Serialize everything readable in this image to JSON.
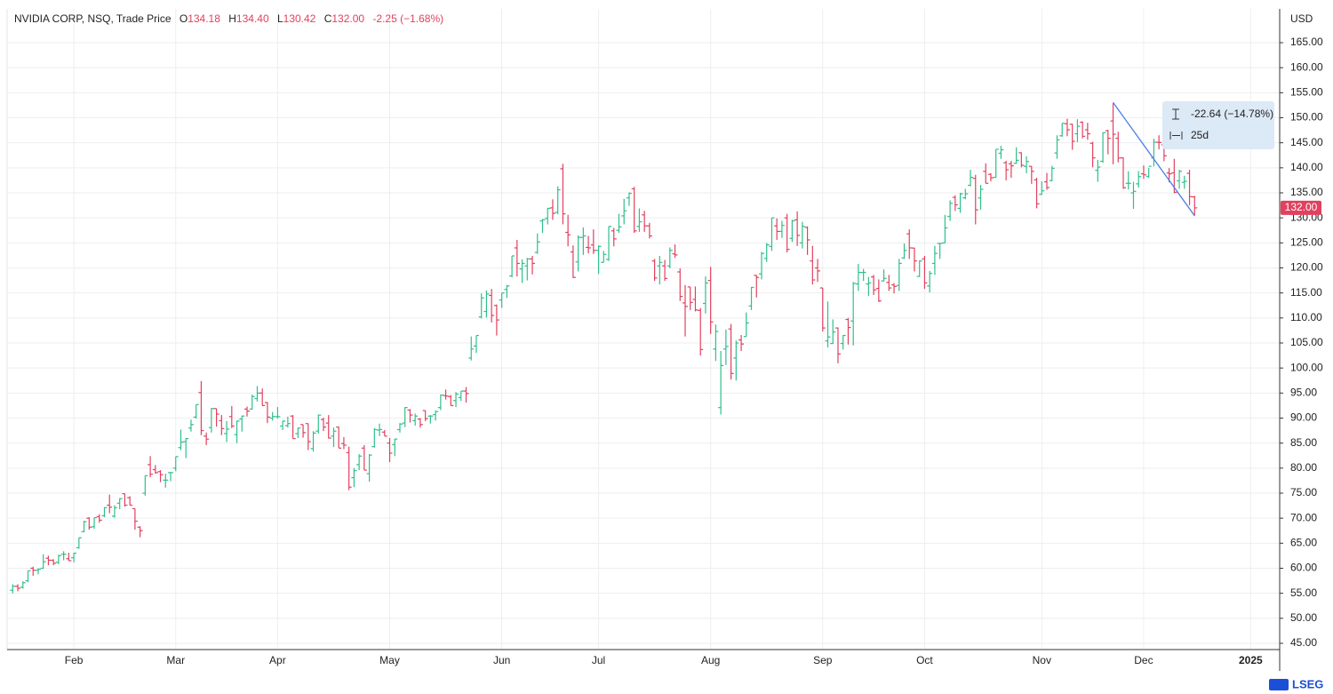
{
  "chart_data": {
    "type": "ohlc",
    "title": "NVIDIA CORP, NSQ, Trade Price",
    "quote": {
      "open": {
        "key": "O",
        "value": 134.18,
        "label": "134.18"
      },
      "high": {
        "key": "H",
        "value": 134.4,
        "label": "134.40"
      },
      "low": {
        "key": "L",
        "value": 130.42,
        "label": "130.42"
      },
      "close": {
        "key": "C",
        "value": 132,
        "label": "132.00"
      },
      "change": {
        "value": -2.25,
        "label": "-2.25 (−1.68%)"
      }
    },
    "y_label": "USD",
    "brand": "LSEG",
    "up_color": "#2fbf8c",
    "down_color": "#e2405e",
    "grid": true,
    "xlim": [
      -1.1,
      248.7
    ],
    "xticks": [
      {
        "value": 12,
        "label": "Feb"
      },
      {
        "value": 32,
        "label": "Mar"
      },
      {
        "value": 52,
        "label": "Apr"
      },
      {
        "value": 74,
        "label": "May"
      },
      {
        "value": 96,
        "label": "Jun"
      },
      {
        "value": 115,
        "label": "Jul"
      },
      {
        "value": 137,
        "label": "Aug"
      },
      {
        "value": 159,
        "label": "Sep"
      },
      {
        "value": 179,
        "label": "Oct"
      },
      {
        "value": 202,
        "label": "Nov"
      },
      {
        "value": 222,
        "label": "Dec"
      },
      {
        "value": 243,
        "label": "2025"
      }
    ],
    "ylim": [
      43.93,
      171.75
    ],
    "yticks": [
      {
        "value": 45,
        "label": "45.00"
      },
      {
        "value": 50,
        "label": "50.00"
      },
      {
        "value": 55,
        "label": "55.00"
      },
      {
        "value": 60,
        "label": "60.00"
      },
      {
        "value": 65,
        "label": "65.00"
      },
      {
        "value": 70,
        "label": "70.00"
      },
      {
        "value": 75,
        "label": "75.00"
      },
      {
        "value": 80,
        "label": "80.00"
      },
      {
        "value": 85,
        "label": "85.00"
      },
      {
        "value": 90,
        "label": "90.00"
      },
      {
        "value": 95,
        "label": "95.00"
      },
      {
        "value": 100,
        "label": "100.00"
      },
      {
        "value": 105,
        "label": "105.00"
      },
      {
        "value": 110,
        "label": "110.00"
      },
      {
        "value": 115,
        "label": "115.00"
      },
      {
        "value": 120,
        "label": "120.00"
      },
      {
        "value": 125,
        "label": "125.00"
      },
      {
        "value": 130,
        "label": "130.00"
      },
      {
        "value": 135,
        "label": "135.00"
      },
      {
        "value": 140,
        "label": "140.00"
      },
      {
        "value": 145,
        "label": "145.00"
      },
      {
        "value": 150,
        "label": "150.00"
      },
      {
        "value": 155,
        "label": "155.00"
      },
      {
        "value": 160,
        "label": "160.00"
      },
      {
        "value": 165,
        "label": "165.00"
      }
    ],
    "measure": {
      "x": [
        216,
        232
      ],
      "y": [
        153.06,
        130.42
      ],
      "change_label": "-22.64 (−14.78%)",
      "duration_label": "25d",
      "color": "#4d7fe6"
    },
    "open": [
      55.6,
      56.4,
      56.2,
      57.5,
      60.0,
      59.6,
      60.0,
      62.0,
      61.6,
      61.2,
      62.8,
      61.9,
      62.1,
      64.1,
      67.3,
      70.0,
      68.3,
      70.3,
      70.5,
      72.6,
      70.4,
      73.0,
      74.9,
      74.1,
      71.9,
      68.2,
      75.0,
      80.7,
      79.7,
      79.3,
      77.6,
      79.1,
      80.0,
      84.1,
      85.3,
      88.0,
      90.2,
      95.1,
      86.4,
      88.1,
      91.9,
      89.5,
      86.9,
      90.3,
      86.7,
      89.8,
      91.8,
      91.8,
      93.9,
      95.0,
      93.1,
      90.0,
      90.3,
      88.4,
      88.5,
      90.4,
      86.9,
      88.7,
      88.9,
      83.9,
      87.4,
      89.7,
      89.0,
      86.4,
      88.2,
      84.9,
      83.1,
      78.1,
      80.7,
      84.0,
      78.9,
      84.3,
      87.6,
      87.2,
      85.0,
      84.7,
      87.7,
      89.0,
      91.6,
      89.5,
      89.8,
      91.5,
      90.4,
      90.7,
      92.1,
      94.5,
      94.3,
      93.5,
      94.1,
      95.4,
      102.0,
      104.4,
      110.2,
      111.3,
      114.5,
      112.5,
      113.6,
      115.7,
      118.4,
      124.0,
      119.8,
      120.4,
      121.8,
      123.1,
      129.4,
      129.9,
      132.0,
      131.1,
      139.8,
      127.1,
      123.2,
      121.2,
      126.1,
      124.1,
      124.6,
      123.5,
      121.1,
      121.7,
      127.4,
      127.5,
      130.4,
      134.0,
      135.8,
      128.3,
      130.6,
      128.4,
      121.4,
      120.4,
      120.4,
      120.4,
      122.8,
      119.2,
      113.0,
      116.2,
      113.7,
      111.5,
      112.9,
      117.5,
      103.8,
      92.1,
      103.8,
      107.8,
      102.0,
      105.6,
      106.3,
      112.4,
      118.5,
      118.8,
      121.9,
      124.3,
      128.4,
      127.3,
      130.0,
      125.9,
      129.6,
      125.0,
      128.1,
      121.4,
      120.0,
      116.0,
      105.4,
      104.9,
      108.0,
      104.9,
      109.7,
      109.4,
      116.8,
      119.1,
      116.8,
      118.2,
      115.9,
      117.4,
      117.1,
      116.6,
      116.5,
      122.0,
      126.8,
      123.97,
      118.3,
      121.8,
      116.4,
      120.9,
      124.9,
      124.99,
      130.3,
      134.1,
      131.9,
      134.0,
      136.5,
      137.9,
      133.98,
      139.3,
      138.7,
      138.1,
      142.9,
      141.0,
      140.8,
      140.9,
      143.0,
      140.3,
      140.3,
      137.6,
      134.7,
      137.2,
      137.45,
      142.96,
      146.4,
      148.8,
      148.7,
      146.8,
      149.1,
      147.6,
      144.9,
      139.5,
      141.3,
      147.4,
      149.35,
      145.9,
      141.99,
      136.9,
      135.0,
      136.8,
      138.8,
      138.3,
      142.0,
      145.1,
      144.6,
      138.97,
      139.0,
      137.4,
      137.1,
      138.9,
      134.18
    ],
    "high": [
      56.8,
      56.8,
      57.4,
      59.5,
      60.3,
      60.0,
      62.8,
      62.5,
      61.8,
      62.7,
      63.4,
      63.1,
      63.1,
      66.1,
      69.5,
      70.2,
      70.1,
      70.8,
      72.2,
      74.7,
      72.6,
      74.0,
      74.9,
      74.4,
      71.9,
      68.4,
      78.5,
      82.4,
      80.6,
      79.6,
      78.9,
      79.2,
      82.3,
      87.7,
      86.0,
      89.7,
      92.7,
      97.4,
      87.1,
      92.0,
      91.9,
      90.6,
      89.4,
      92.4,
      89.5,
      90.5,
      92.3,
      94.7,
      96.4,
      95.9,
      93.2,
      91.2,
      92.2,
      89.5,
      90.3,
      90.6,
      88.1,
      88.7,
      88.9,
      87.4,
      90.7,
      90.1,
      90.6,
      88.1,
      88.3,
      86.2,
      84.3,
      80.0,
      82.8,
      84.6,
      82.8,
      88.0,
      88.9,
      87.6,
      86.0,
      85.9,
      89.0,
      92.2,
      91.8,
      90.9,
      90.0,
      91.5,
      90.6,
      91.5,
      94.7,
      95.7,
      94.6,
      95.2,
      95.4,
      96.2,
      106.3,
      106.5,
      114.9,
      115.5,
      115.8,
      112.7,
      115.0,
      116.6,
      122.4,
      125.6,
      121.7,
      122.0,
      122.4,
      126.9,
      129.8,
      132.0,
      133.7,
      136.3,
      140.8,
      130.6,
      124.5,
      126.5,
      128.1,
      126.4,
      127.7,
      124.5,
      123.4,
      128.3,
      128.0,
      130.8,
      133.8,
      135.1,
      136.2,
      131.9,
      131.4,
      129.0,
      121.8,
      122.4,
      121.6,
      124.1,
      124.7,
      119.9,
      116.6,
      116.2,
      116.3,
      111.99,
      118.3,
      120.2,
      108.7,
      103.4,
      107.7,
      108.8,
      105.5,
      106.6,
      111.1,
      116.2,
      118.6,
      123.2,
      125.0,
      130.0,
      129.9,
      129.4,
      130.8,
      129.6,
      131.3,
      129.2,
      128.3,
      124.4,
      121.8,
      116.0,
      113.3,
      109.7,
      108.1,
      106.6,
      110.0,
      117.2,
      120.8,
      119.8,
      118.2,
      118.6,
      117.7,
      119.7,
      118.6,
      116.99,
      121.8,
      124.9,
      127.7,
      124.0,
      121.5,
      122.4,
      119.4,
      124.4,
      125.0,
      130.6,
      133.5,
      134.5,
      135.0,
      135.8,
      139.6,
      138.6,
      136.6,
      140.9,
      138.9,
      143.7,
      144.4,
      141.4,
      141.4,
      144.1,
      143.1,
      142.3,
      140.3,
      138.0,
      137.3,
      138.96,
      140.4,
      146.5,
      148.9,
      149.8,
      148.8,
      149.7,
      149.3,
      149.0,
      145.2,
      141.6,
      147.1,
      147.6,
      152.9,
      147.2,
      142.05,
      139.3,
      137.2,
      139.35,
      140.45,
      140.0,
      145.8,
      146.5,
      145.7,
      139.95,
      141.8,
      139.6,
      138.4,
      139.6,
      134.4
    ],
    "low": [
      55.0,
      55.4,
      55.9,
      57.2,
      58.5,
      58.8,
      59.9,
      60.6,
      60.6,
      60.8,
      61.6,
      61.5,
      61.2,
      63.9,
      67.2,
      67.7,
      67.9,
      69.1,
      70.2,
      71.0,
      70.1,
      71.8,
      72.3,
      72.6,
      67.7,
      66.2,
      74.5,
      78.2,
      78.9,
      77.2,
      76.1,
      77.4,
      79.4,
      83.6,
      82.0,
      87.3,
      89.9,
      86.6,
      84.6,
      87.1,
      88.3,
      86.6,
      85.2,
      88.0,
      85.0,
      87.3,
      90.3,
      91.7,
      93.3,
      92.5,
      89.0,
      89.5,
      89.9,
      87.6,
      88.1,
      85.9,
      86.0,
      86.1,
      83.6,
      83.3,
      86.9,
      87.4,
      85.9,
      84.2,
      84.0,
      83.8,
      75.6,
      76.2,
      79.6,
      79.6,
      77.3,
      84.1,
      86.4,
      86.4,
      81.2,
      82.4,
      87.1,
      88.2,
      89.1,
      88.5,
      88.1,
      89.4,
      88.9,
      89.5,
      91.6,
      93.7,
      92.5,
      92.2,
      93.4,
      93.1,
      101.5,
      103.0,
      109.9,
      110.1,
      109.1,
      106.5,
      112.0,
      114.0,
      118.1,
      118.3,
      117.0,
      117.5,
      118.7,
      122.8,
      127.0,
      128.7,
      129.6,
      130.7,
      128.7,
      124.3,
      118.0,
      119.3,
      122.6,
      122.9,
      122.8,
      118.8,
      121.1,
      121.4,
      124.3,
      127.0,
      128.7,
      132.4,
      127.0,
      127.2,
      127.2,
      125.9,
      117.4,
      116.7,
      117.4,
      119.9,
      122.0,
      113.4,
      106.3,
      111.6,
      111.3,
      102.5,
      110.9,
      106.8,
      101.4,
      90.7,
      100.6,
      97.7,
      97.5,
      103.4,
      106.3,
      111.6,
      114.1,
      117.7,
      121.2,
      123.4,
      125.6,
      126.0,
      123.1,
      125.2,
      124.4,
      123.9,
      122.6,
      116.7,
      117.2,
      107.3,
      104.1,
      104.8,
      100.95,
      103.7,
      104.7,
      104.5,
      115.4,
      117.4,
      114.4,
      114.6,
      113.2,
      117.3,
      115.4,
      114.9,
      115.4,
      121.8,
      121.8,
      119.3,
      118.2,
      115.8,
      115.1,
      118.6,
      121.8,
      124.95,
      129.4,
      131.4,
      131.0,
      133.7,
      136.3,
      128.7,
      131.6,
      136.9,
      137.3,
      138.0,
      141.8,
      137.5,
      138.0,
      140.8,
      140.1,
      138.9,
      136.8,
      131.9,
      134.6,
      135.6,
      137.3,
      141.8,
      146.2,
      146.3,
      143.6,
      145.1,
      145.9,
      145.6,
      140.1,
      137.2,
      140.99,
      142.7,
      140.7,
      141.1,
      135.8,
      135.7,
      131.8,
      136.05,
      137.8,
      137.96,
      140.3,
      143.7,
      141.3,
      137.1,
      134.9,
      135.8,
      135.8,
      132.5,
      130.42
    ],
    "close": [
      56.4,
      56.0,
      57.1,
      59.5,
      59.6,
      59.8,
      61.3,
      61.6,
      61.0,
      62.5,
      62.8,
      61.5,
      63.0,
      66.1,
      69.3,
      68.2,
      70.1,
      69.6,
      72.1,
      72.2,
      72.1,
      73.9,
      72.6,
      72.6,
      69.4,
      67.5,
      78.5,
      78.8,
      79.1,
      78.7,
      77.6,
      79.1,
      82.3,
      85.2,
      85.9,
      88.7,
      92.7,
      87.5,
      85.8,
      91.9,
      90.8,
      87.9,
      87.8,
      88.4,
      89.4,
      90.4,
      91.4,
      94.3,
      95.0,
      92.5,
      90.2,
      90.3,
      90.3,
      89.4,
      88.9,
      85.9,
      88.0,
      87.1,
      85.3,
      87.0,
      90.6,
      88.2,
      86.0,
      87.4,
      84.0,
      84.6,
      76.2,
      79.5,
      82.4,
      79.6,
      82.6,
      87.7,
      87.7,
      86.4,
      83.0,
      85.8,
      88.8,
      92.1,
      90.6,
      90.4,
      88.7,
      89.9,
      90.4,
      91.3,
      94.6,
      94.4,
      92.5,
      94.8,
      95.4,
      94.9,
      103.8,
      106.5,
      114.0,
      114.8,
      110.5,
      109.6,
      115.0,
      116.4,
      122.4,
      120.9,
      120.9,
      121.8,
      120.9,
      125.2,
      129.6,
      131.9,
      130.9,
      135.6,
      130.8,
      126.6,
      118.1,
      126.1,
      126.4,
      124.0,
      123.5,
      124.3,
      122.7,
      128.3,
      125.8,
      128.2,
      131.4,
      134.9,
      127.4,
      129.2,
      128.4,
      126.4,
      118.0,
      121.1,
      117.9,
      123.5,
      122.6,
      114.3,
      112.3,
      113.1,
      111.6,
      103.7,
      117.0,
      109.2,
      107.3,
      100.5,
      104.3,
      98.9,
      105.0,
      104.8,
      109.0,
      116.1,
      118.1,
      122.9,
      124.6,
      130.0,
      127.3,
      128.5,
      123.7,
      129.4,
      126.5,
      128.3,
      125.6,
      117.6,
      119.4,
      108.0,
      106.2,
      107.2,
      102.8,
      106.5,
      108.1,
      116.9,
      119.1,
      119.1,
      117.0,
      115.6,
      113.4,
      117.9,
      116.0,
      116.3,
      120.9,
      123.5,
      124.0,
      121.4,
      121.4,
      117.0,
      118.9,
      122.9,
      124.9,
      128.0,
      132.9,
      132.6,
      134.8,
      134.8,
      138.1,
      131.6,
      135.7,
      136.9,
      138.0,
      143.7,
      143.6,
      139.6,
      140.4,
      141.5,
      140.5,
      141.25,
      139.3,
      132.8,
      135.4,
      136.05,
      139.9,
      145.6,
      148.9,
      147.6,
      145.3,
      148.3,
      146.3,
      146.8,
      141.98,
      140.15,
      147.0,
      145.9,
      146.7,
      141.95,
      136.0,
      136.9,
      135.3,
      138.25,
      138.6,
      140.3,
      145.1,
      145.06,
      142.4,
      138.8,
      135.1,
      139.3,
      137.3,
      134.25,
      132.0
    ]
  }
}
